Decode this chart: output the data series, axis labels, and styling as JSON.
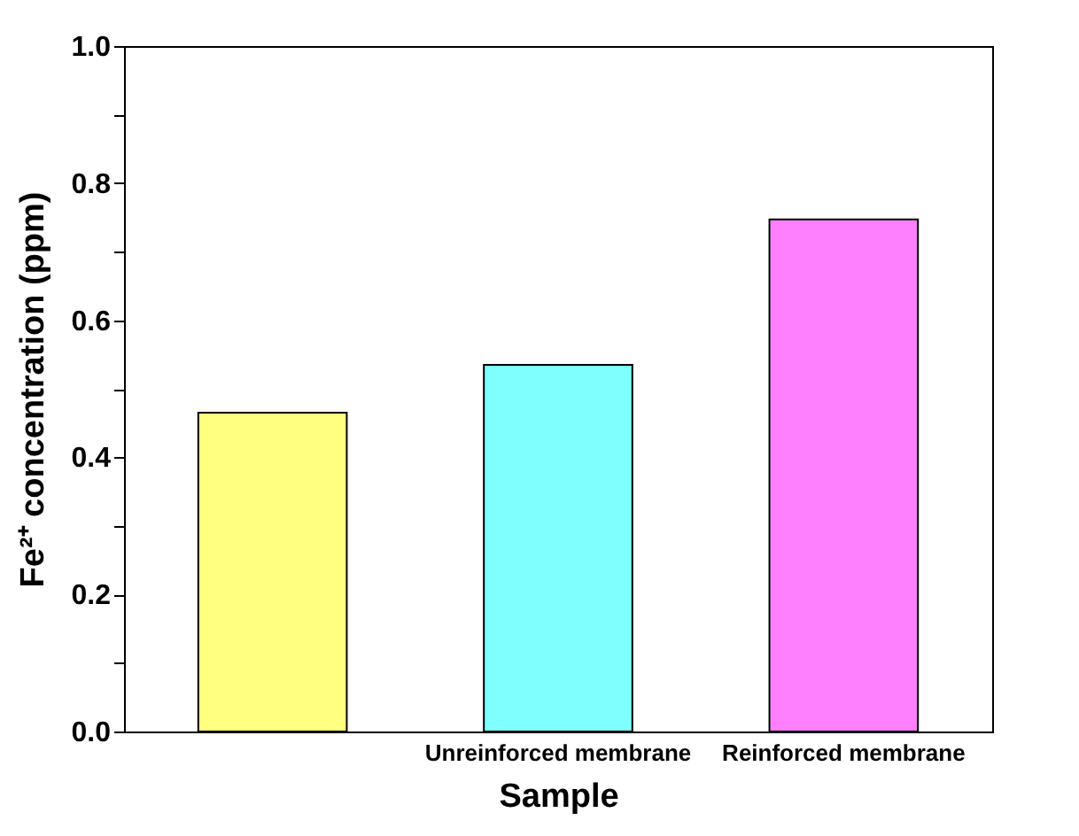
{
  "chart_data": {
    "type": "bar",
    "xlabel": "Sample",
    "ylabel": "Fe²⁺ concentration (ppm)",
    "categories": [
      null,
      "Unreinforced membrane",
      "Reinforced membrane"
    ],
    "values": [
      0.465,
      0.535,
      0.747
    ],
    "colors": [
      "#ffff80",
      "#80ffff",
      "#ff80ff"
    ],
    "ylim": [
      0,
      1
    ],
    "yticks": [
      {
        "value": 0,
        "label": "0.0"
      },
      {
        "value": 0.1,
        "label": null
      },
      {
        "value": 0.2,
        "label": "0.2"
      },
      {
        "value": 0.3,
        "label": null
      },
      {
        "value": 0.4,
        "label": "0.4"
      },
      {
        "value": 0.5,
        "label": null
      },
      {
        "value": 0.6,
        "label": "0.6"
      },
      {
        "value": 0.7,
        "label": null
      },
      {
        "value": 0.8,
        "label": "0.8"
      },
      {
        "value": 0.9,
        "label": null
      },
      {
        "value": 1,
        "label": "1.0"
      }
    ],
    "grid": false
  }
}
